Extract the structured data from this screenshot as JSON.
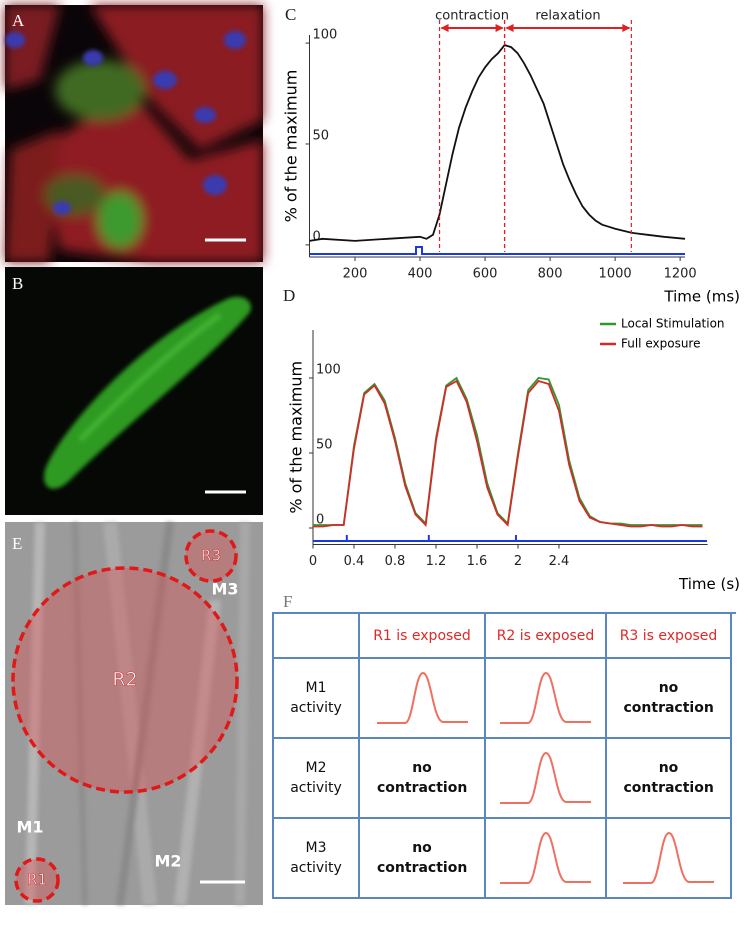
{
  "figure": {
    "panel_labels": [
      "A",
      "B",
      "C",
      "D",
      "E",
      "F"
    ]
  },
  "chart_data": [
    {
      "type": "line",
      "ylabel": "% of the maximum",
      "xlabel": "Time (ms)",
      "x": [
        60,
        100,
        200,
        300,
        400,
        420,
        440,
        460,
        480,
        500,
        520,
        540,
        560,
        580,
        600,
        620,
        640,
        660,
        680,
        700,
        720,
        740,
        760,
        780,
        800,
        820,
        840,
        860,
        880,
        900,
        920,
        940,
        960,
        980,
        1000,
        1050,
        1100,
        1150,
        1215
      ],
      "series": [
        {
          "color": "#111111",
          "values": [
            2,
            3,
            2,
            3,
            4,
            3,
            5,
            15,
            30,
            45,
            58,
            68,
            76,
            83,
            88,
            92,
            95,
            99,
            98,
            95,
            90,
            84,
            77,
            70,
            60,
            50,
            40,
            32,
            25,
            19,
            15,
            12,
            10,
            9,
            8,
            6,
            5,
            4,
            3
          ]
        }
      ],
      "xlim": [
        60,
        1215
      ],
      "xticks": [
        200,
        400,
        600,
        800,
        1000,
        1200
      ],
      "ylim": [
        -6,
        104
      ],
      "yticks": [
        0,
        50,
        100
      ],
      "annotations": [
        {
          "text": "contraction",
          "x": [
            460,
            660
          ]
        },
        {
          "text": "relaxation",
          "x": [
            660,
            1050
          ]
        }
      ],
      "annotation_color": "#e02020"
    },
    {
      "type": "line",
      "ylabel": "% of the maximum",
      "xlabel": "Time (s)",
      "x": [
        0,
        0.1,
        0.2,
        0.3,
        0.4,
        0.5,
        0.6,
        0.7,
        0.8,
        0.9,
        1.0,
        1.1,
        1.2,
        1.3,
        1.4,
        1.5,
        1.6,
        1.7,
        1.8,
        1.9,
        2.0,
        2.1,
        2.2,
        2.3,
        2.4,
        2.5,
        2.6,
        2.7,
        2.8,
        2.9,
        3.0,
        3.1,
        3.2,
        3.3,
        3.4,
        3.5,
        3.6,
        3.7,
        3.8
      ],
      "series": [
        {
          "name": "Local Stimulation",
          "color": "#2e9a2e",
          "values": [
            2,
            2,
            2,
            2,
            55,
            90,
            96,
            85,
            60,
            30,
            10,
            3,
            60,
            95,
            100,
            86,
            62,
            30,
            10,
            3,
            50,
            92,
            100,
            99,
            82,
            45,
            20,
            8,
            4,
            3,
            3,
            2,
            2,
            2,
            2,
            2,
            2,
            2,
            2
          ]
        },
        {
          "name": "Full exposure",
          "color": "#d42a2a",
          "values": [
            1,
            1,
            2,
            2,
            53,
            89,
            95,
            83,
            58,
            28,
            9,
            2,
            58,
            94,
            98,
            84,
            58,
            27,
            9,
            2,
            48,
            90,
            98,
            96,
            78,
            42,
            18,
            7,
            4,
            3,
            2,
            1,
            1,
            2,
            1,
            1,
            2,
            1,
            1
          ]
        }
      ],
      "xlim": [
        0,
        3.85
      ],
      "xticks": [
        0,
        0.4,
        0.8,
        1.2,
        1.6,
        2,
        2.4
      ],
      "ylim": [
        -11,
        132
      ],
      "yticks": [
        0,
        50,
        100
      ]
    }
  ],
  "image_e": {
    "regions": [
      "R1",
      "R2",
      "R3"
    ],
    "cells": [
      "M1",
      "M2",
      "M3"
    ]
  },
  "table": {
    "columns": [
      "R1 is exposed",
      "R2 is exposed",
      "R3 is exposed"
    ],
    "rows": [
      {
        "label": "M1 activity",
        "cells": [
          null,
          null,
          "no contraction"
        ]
      },
      {
        "label": "M2 activity",
        "cells": [
          "no contraction",
          null,
          "no contraction"
        ]
      },
      {
        "label": "M3 activity",
        "cells": [
          "no contraction",
          null,
          null
        ]
      }
    ]
  }
}
